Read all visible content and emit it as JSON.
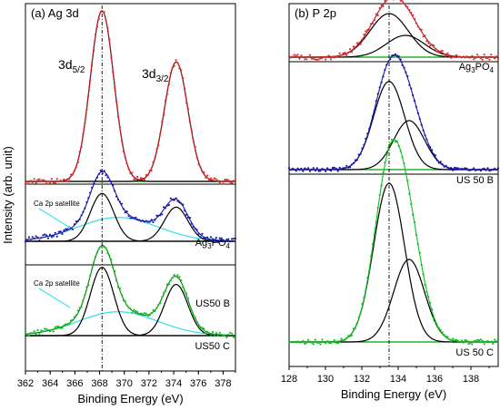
{
  "y_axis_title": "Intensity (arb. unit)",
  "chart_data": [
    {
      "type": "line",
      "panel_label": "(a) Ag 3d",
      "xlabel": "Binding Energy (eV)",
      "ylabel": "Intensity (arb. unit)",
      "xlim": [
        362,
        379
      ],
      "x_ticks": [
        362,
        364,
        366,
        368,
        370,
        372,
        374,
        376,
        378
      ],
      "grid": false,
      "reference_line_x": 368.2,
      "peak_labels": [
        {
          "base": "3d",
          "sub": "5/2",
          "x": 368.2
        },
        {
          "base": "3d",
          "sub": "3/2",
          "x": 374.2
        }
      ],
      "traces": [
        {
          "label_base": "Ag",
          "label_sub1": "3",
          "label_mid": "PO",
          "label_sub2": "4",
          "data_color": "#d83030",
          "fit_color": "#000000",
          "envelope_color": "#c01818",
          "background_color": "#00a000",
          "peaks": [
            {
              "center": 368.2,
              "sigma": 0.95,
              "height": 1.0
            },
            {
              "center": 374.2,
              "sigma": 0.95,
              "height": 0.7
            }
          ],
          "satellite": null
        },
        {
          "label_base": "US50 B",
          "data_color": "#1818a8",
          "fit_color": "#000000",
          "envelope_color": "#1818a8",
          "background_color": "#000000",
          "satellite_color": "#40e0e8",
          "satellite_label": "Ca 2p satellite",
          "peaks": [
            {
              "center": 368.2,
              "sigma": 0.95,
              "height": 0.28
            },
            {
              "center": 374.2,
              "sigma": 0.95,
              "height": 0.2
            }
          ],
          "satellite": {
            "center": 369.5,
            "sigma": 3.2,
            "height": 0.14
          }
        },
        {
          "label_base": "US50 C",
          "data_color": "#10c020",
          "fit_color": "#000000",
          "envelope_color": "#008000",
          "background_color": "#000000",
          "satellite_color": "#40e0e8",
          "satellite_label": "Ca 2p satellite",
          "peaks": [
            {
              "center": 368.2,
              "sigma": 0.95,
              "height": 0.4
            },
            {
              "center": 374.2,
              "sigma": 0.95,
              "height": 0.3
            }
          ],
          "satellite": {
            "center": 369.5,
            "sigma": 3.2,
            "height": 0.14
          }
        }
      ]
    },
    {
      "type": "line",
      "panel_label": "(b) P 2p",
      "xlabel": "Binding Energy (eV)",
      "xlim": [
        128,
        139.5
      ],
      "x_ticks": [
        128,
        130,
        132,
        134,
        136,
        138
      ],
      "grid": false,
      "reference_line_x": 133.5,
      "traces": [
        {
          "label_base": "Ag",
          "label_sub1": "3",
          "label_mid": "PO",
          "label_sub2": "4",
          "data_color": "#d83030",
          "fit_color": "#000000",
          "envelope_color": "#c01818",
          "background_color": "#00a000",
          "peaks": [
            {
              "center": 133.5,
              "sigma": 1.05,
              "height": 0.24
            },
            {
              "center": 134.4,
              "sigma": 1.05,
              "height": 0.12
            }
          ]
        },
        {
          "label_base": "US 50 B",
          "data_color": "#1818a8",
          "fit_color": "#000000",
          "envelope_color": "#1818a8",
          "background_color": "#00a000",
          "peaks": [
            {
              "center": 133.5,
              "sigma": 0.85,
              "height": 0.72
            },
            {
              "center": 134.6,
              "sigma": 0.85,
              "height": 0.4
            }
          ]
        },
        {
          "label_base": "US 50 C",
          "data_color": "#10c020",
          "fit_color": "#000000",
          "envelope_color": "#10c020",
          "background_color": "#00a000",
          "peaks": [
            {
              "center": 133.5,
              "sigma": 0.85,
              "height": 1.0
            },
            {
              "center": 134.6,
              "sigma": 0.85,
              "height": 0.52
            }
          ]
        }
      ]
    }
  ]
}
